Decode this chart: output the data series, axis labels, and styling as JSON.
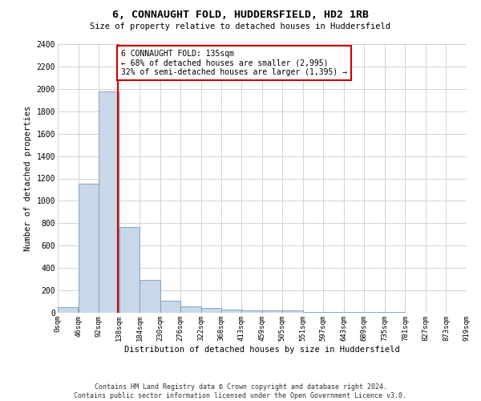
{
  "title": "6, CONNAUGHT FOLD, HUDDERSFIELD, HD2 1RB",
  "subtitle": "Size of property relative to detached houses in Huddersfield",
  "xlabel": "Distribution of detached houses by size in Huddersfield",
  "ylabel": "Number of detached properties",
  "bin_edges": [
    0,
    46,
    92,
    138,
    184,
    230,
    276,
    322,
    368,
    413,
    459,
    505,
    551,
    597,
    643,
    689,
    735,
    781,
    827,
    873,
    919
  ],
  "bar_heights": [
    50,
    1150,
    1980,
    770,
    295,
    110,
    55,
    45,
    30,
    20,
    25,
    18,
    10,
    8,
    5,
    5,
    4,
    3,
    2,
    2
  ],
  "bar_color": "#c8d8e8",
  "bar_edge_color": "#7a9ab8",
  "property_size": 135,
  "property_line_color": "#cc0000",
  "annotation_text": "6 CONNAUGHT FOLD: 135sqm\n← 68% of detached houses are smaller (2,995)\n32% of semi-detached houses are larger (1,395) →",
  "annotation_box_color": "#cc0000",
  "ylim": [
    0,
    2400
  ],
  "yticks": [
    0,
    200,
    400,
    600,
    800,
    1000,
    1200,
    1400,
    1600,
    1800,
    2000,
    2200,
    2400
  ],
  "footer_line1": "Contains HM Land Registry data © Crown copyright and database right 2024.",
  "footer_line2": "Contains public sector information licensed under the Open Government Licence v3.0.",
  "grid_color": "#cccccc",
  "background_color": "#ffffff"
}
